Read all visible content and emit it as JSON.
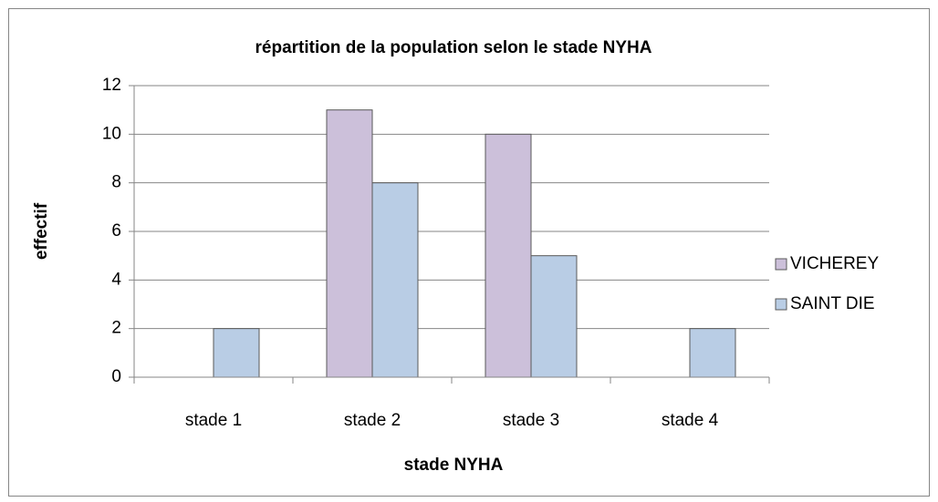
{
  "chart_data": {
    "type": "bar",
    "title": "répartition de la population selon le stade NYHA",
    "x_label": "stade NYHA",
    "y_label": "effectif",
    "categories": [
      "stade 1",
      "stade 2",
      "stade 3",
      "stade 4"
    ],
    "series": [
      {
        "name": "VICHEREY",
        "color": "#ccc0da",
        "values": [
          0,
          11,
          10,
          0
        ]
      },
      {
        "name": "SAINT DIE",
        "color": "#b9cde5",
        "values": [
          2,
          8,
          5,
          2
        ]
      }
    ],
    "ylim": [
      0,
      12
    ],
    "yticks": [
      0,
      2,
      4,
      6,
      8,
      10,
      12
    ],
    "grid": true,
    "legend": "right"
  }
}
